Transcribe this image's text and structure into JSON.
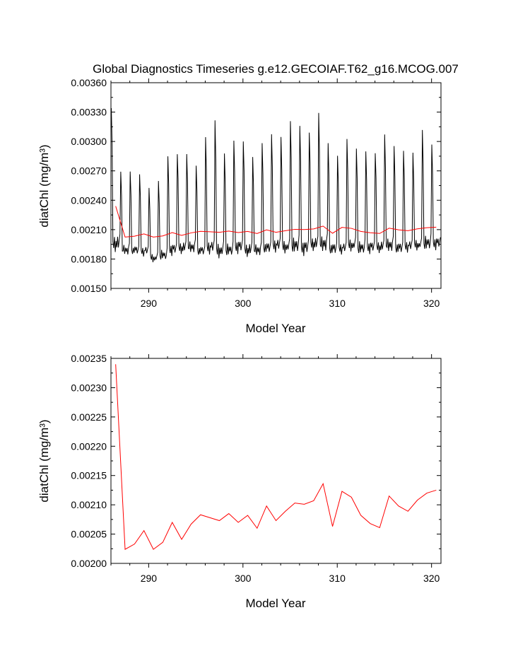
{
  "title": "Global Diagnostics Timeseries g.e12.GECOIAF.T62_g16.MCOG.007",
  "chart_data": [
    {
      "type": "line",
      "panel": "top",
      "title": "Global Diagnostics Timeseries g.e12.GECOIAF.T62_g16.MCOG.007",
      "xlabel": "Model Year",
      "ylabel": "diatChl (mg/m³)",
      "xlim": [
        286.0,
        321.0
      ],
      "ylim": [
        0.0015,
        0.0036
      ],
      "xticks": [
        "290",
        "300",
        "310",
        "320"
      ],
      "yticks": [
        "0.00150",
        "0.00180",
        "0.00210",
        "0.00240",
        "0.00270",
        "0.00300",
        "0.00330",
        "0.00360"
      ],
      "grid": false,
      "series": [
        {
          "color": "#000000",
          "note_kind": "monthly",
          "start_year": 286.04,
          "step": 0.0833,
          "annual_peaks": [
            0.00334,
            0.00268,
            0.00267,
            0.00263,
            0.00252,
            0.00258,
            0.00282,
            0.00287,
            0.00286,
            0.00273,
            0.00301,
            0.00321,
            0.00286,
            0.00298,
            0.003,
            0.00283,
            0.00296,
            0.00304,
            0.00304,
            0.00319,
            0.00313,
            0.00309,
            0.00328,
            0.00296,
            0.00282,
            0.00302,
            0.00291,
            0.00287,
            0.00288,
            0.00306,
            0.00293,
            0.00287,
            0.00288,
            0.0031,
            0.00294
          ],
          "annual_troughs": [
            0.00186,
            0.00183,
            0.00183,
            0.00182,
            0.00175,
            0.00178,
            0.00183,
            0.00184,
            0.00185,
            0.00182,
            0.00184,
            0.00179,
            0.00182,
            0.00185,
            0.00181,
            0.00182,
            0.00184,
            0.00186,
            0.00184,
            0.00185,
            0.00183,
            0.00187,
            0.00186,
            0.00183,
            0.00184,
            0.00186,
            0.00184,
            0.00185,
            0.00185,
            0.00186,
            0.00184,
            0.00186,
            0.00187,
            0.00188,
            0.00189
          ]
        },
        {
          "color": "#ff0000",
          "x": [
            286.5,
            287.5,
            288.5,
            289.5,
            290.5,
            291.5,
            292.5,
            293.5,
            294.5,
            295.5,
            296.5,
            297.5,
            298.5,
            299.5,
            300.5,
            301.5,
            302.5,
            303.5,
            304.5,
            305.5,
            306.5,
            307.5,
            308.5,
            309.5,
            310.5,
            311.5,
            312.5,
            313.5,
            314.5,
            315.5,
            316.5,
            317.5,
            318.5,
            319.5,
            320.5
          ],
          "y": [
            0.00234,
            0.002024,
            0.002033,
            0.002056,
            0.002024,
            0.002036,
            0.00207,
            0.002041,
            0.002067,
            0.002083,
            0.002078,
            0.002073,
            0.002085,
            0.00207,
            0.002082,
            0.00206,
            0.002098,
            0.002073,
            0.002089,
            0.002103,
            0.002101,
            0.002107,
            0.002136,
            0.002063,
            0.002123,
            0.002113,
            0.002082,
            0.002068,
            0.002061,
            0.002115,
            0.002098,
            0.002089,
            0.002108,
            0.00212,
            0.002125
          ]
        }
      ]
    },
    {
      "type": "line",
      "panel": "bottom",
      "title": "",
      "xlabel": "Model Year",
      "ylabel": "diatChl (mg/m³)",
      "xlim": [
        286.0,
        321.0
      ],
      "ylim": [
        0.002,
        0.00235
      ],
      "xticks": [
        "290",
        "300",
        "310",
        "320"
      ],
      "yticks": [
        "0.00200",
        "0.00205",
        "0.00210",
        "0.00215",
        "0.00220",
        "0.00225",
        "0.00230",
        "0.00235"
      ],
      "grid": false,
      "series": [
        {
          "color": "#ff0000",
          "x": [
            286.5,
            287.5,
            288.5,
            289.5,
            290.5,
            291.5,
            292.5,
            293.5,
            294.5,
            295.5,
            296.5,
            297.5,
            298.5,
            299.5,
            300.5,
            301.5,
            302.5,
            303.5,
            304.5,
            305.5,
            306.5,
            307.5,
            308.5,
            309.5,
            310.5,
            311.5,
            312.5,
            313.5,
            314.5,
            315.5,
            316.5,
            317.5,
            318.5,
            319.5,
            320.5
          ],
          "y": [
            0.00234,
            0.002024,
            0.002033,
            0.002056,
            0.002024,
            0.002036,
            0.00207,
            0.002041,
            0.002067,
            0.002083,
            0.002078,
            0.002073,
            0.002085,
            0.00207,
            0.002082,
            0.00206,
            0.002098,
            0.002073,
            0.002089,
            0.002103,
            0.002101,
            0.002107,
            0.002136,
            0.002063,
            0.002123,
            0.002113,
            0.002082,
            0.002068,
            0.002061,
            0.002115,
            0.002098,
            0.002089,
            0.002108,
            0.00212,
            0.002125
          ]
        }
      ]
    }
  ]
}
